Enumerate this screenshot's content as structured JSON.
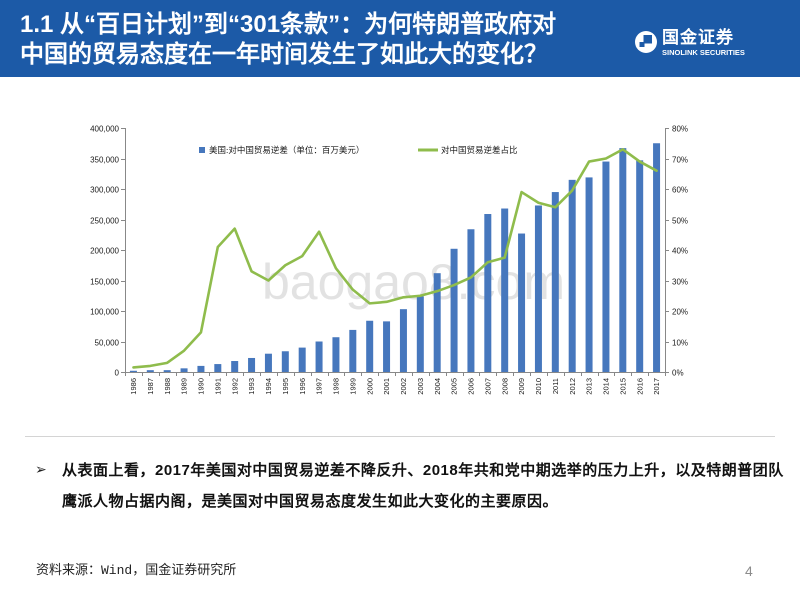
{
  "header": {
    "title_line1": "1.1 从“百日计划”到“301条款”：为何特朗普政府对",
    "title_line2": "中国的贸易态度在一年时间发生了如此大的变化？"
  },
  "logo": {
    "icon": "sinolink-logo-icon",
    "name_cn": "国金证券",
    "name_en": "SINOLINK SECURITIES"
  },
  "watermark": "baogao8.com",
  "bullet": {
    "icon": "arrow-bullet-icon",
    "glyph": "➢",
    "text": "从表面上看，2017年美国对中国贸易逆差不降反升、2018年共和党中期选举的压力上升，以及特朗普团队鹰派人物占据内阁，是美国对中国贸易态度发生如此大变化的主要原因。"
  },
  "footer": {
    "source": "资料来源：Wind，国金证券研究所",
    "page_number": "4"
  },
  "colors": {
    "header_bg": "#1c5aa7",
    "bar": "#4677bd",
    "line": "#8fbc4c",
    "axis": "#888888"
  },
  "chart_data": {
    "type": "bar",
    "categories": [
      "1986",
      "1987",
      "1988",
      "1989",
      "1990",
      "1991",
      "1992",
      "1993",
      "1994",
      "1995",
      "1996",
      "1997",
      "1998",
      "1999",
      "2000",
      "2001",
      "2002",
      "2003",
      "2004",
      "2005",
      "2006",
      "2007",
      "2008",
      "2009",
      "2010",
      "2011",
      "2012",
      "2013",
      "2014",
      "2015",
      "2016",
      "2017"
    ],
    "series": [
      {
        "name": "美国:对中国贸易逆差（单位：百万美元）",
        "type": "bar",
        "axis": "left",
        "values": [
          2000,
          3000,
          3000,
          6000,
          10000,
          13000,
          18000,
          23000,
          30000,
          34000,
          40000,
          50000,
          57000,
          69000,
          84000,
          83000,
          103000,
          124000,
          162000,
          202000,
          234000,
          259000,
          268000,
          227000,
          273000,
          295000,
          315000,
          319000,
          345000,
          367000,
          347000,
          375000
        ]
      },
      {
        "name": "对中国贸易逆差占比",
        "type": "line",
        "axis": "right",
        "values": [
          1.5,
          2,
          3,
          7,
          13,
          41,
          47,
          33,
          30,
          35,
          38,
          46,
          34,
          27,
          22.5,
          23,
          24.5,
          25,
          26.5,
          28.5,
          31,
          36,
          37.5,
          59,
          55.5,
          54,
          59.5,
          69,
          70,
          73,
          69,
          66
        ]
      }
    ],
    "y_left": {
      "min": 0,
      "max": 400000,
      "step": 50000,
      "tick_labels": [
        "0",
        "50,000",
        "100,000",
        "150,000",
        "200,000",
        "250,000",
        "300,000",
        "350,000",
        "400,000"
      ]
    },
    "y_right": {
      "min": 0,
      "max": 80,
      "step": 10,
      "tick_labels": [
        "0%",
        "10%",
        "20%",
        "30%",
        "40%",
        "50%",
        "60%",
        "70%",
        "80%"
      ]
    },
    "grid": false,
    "legend_position": "top"
  }
}
